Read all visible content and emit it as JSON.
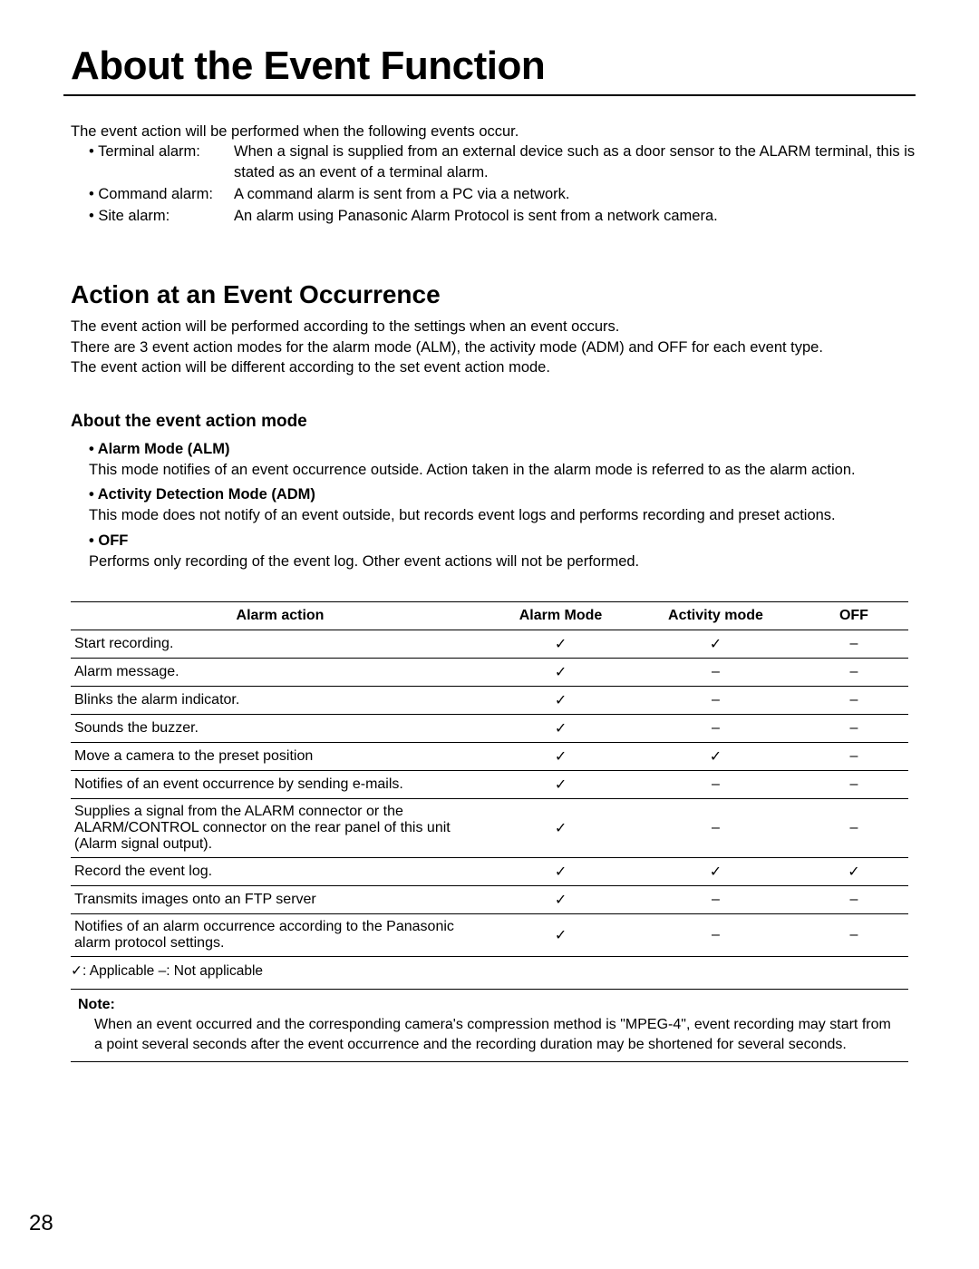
{
  "title": "About the Event Function",
  "intro": "The event action will be performed when the following events occur.",
  "alarm_types": [
    {
      "label": "• Terminal alarm:",
      "desc": "When a signal is supplied from an external device such as a door sensor to the ALARM terminal, this is stated as an event of a terminal alarm."
    },
    {
      "label": "• Command alarm:",
      "desc": "A command alarm is sent from a PC via a network."
    },
    {
      "label": "• Site alarm:",
      "desc": "An alarm using Panasonic Alarm Protocol is sent from a network camera."
    }
  ],
  "section": {
    "title": "Action at an Event Occurrence",
    "intro_lines": [
      "The event action will be performed according to the settings when an event occurs.",
      "There are 3 event action modes for the alarm mode (ALM), the activity mode (ADM) and OFF for each event type.",
      "The event action will be different according to the set event action mode."
    ]
  },
  "subsection": {
    "title": "About the event action mode",
    "modes": [
      {
        "name": "• Alarm Mode (ALM)",
        "desc": "This mode notifies of an event occurrence outside. Action taken in the alarm mode is referred to as the alarm action."
      },
      {
        "name": "• Activity Detection Mode (ADM)",
        "desc": "This mode does not notify of an event outside, but records event logs and performs recording and preset actions."
      },
      {
        "name": "• OFF",
        "desc": "Performs only recording of the event log. Other event actions will not be performed."
      }
    ]
  },
  "table": {
    "headers": [
      "Alarm action",
      "Alarm Mode",
      "Activity mode",
      "OFF"
    ],
    "rows": [
      {
        "action": "Start recording.",
        "alarm": "✓",
        "activity": "✓",
        "off": "–"
      },
      {
        "action": "Alarm message.",
        "alarm": "✓",
        "activity": "–",
        "off": "–"
      },
      {
        "action": "Blinks the alarm indicator.",
        "alarm": "✓",
        "activity": "–",
        "off": "–"
      },
      {
        "action": "Sounds the buzzer.",
        "alarm": "✓",
        "activity": "–",
        "off": "–"
      },
      {
        "action": "Move a camera to the preset position",
        "alarm": "✓",
        "activity": "✓",
        "off": "–"
      },
      {
        "action": "Notifies of an event occurrence by sending e-mails.",
        "alarm": "✓",
        "activity": "–",
        "off": "–"
      },
      {
        "action": "Supplies a signal from the ALARM connector or the ALARM/CONTROL connector on the rear panel of this unit (Alarm signal output).",
        "alarm": "✓",
        "activity": "–",
        "off": "–"
      },
      {
        "action": "Record the event log.",
        "alarm": "✓",
        "activity": "✓",
        "off": "✓"
      },
      {
        "action": "Transmits images onto an FTP server",
        "alarm": "✓",
        "activity": "–",
        "off": "–"
      },
      {
        "action": "Notifies of an alarm occurrence according to the Panasonic alarm protocol settings.",
        "alarm": "✓",
        "activity": "–",
        "off": "–"
      }
    ]
  },
  "legend": "✓: Applicable  –: Not applicable",
  "note": {
    "label": "Note:",
    "text": "When an event occurred and the corresponding camera's compression method is \"MPEG-4\", event recording may start from a point several seconds after the event occurrence and the recording duration may be shortened for several seconds."
  },
  "page_number": "28"
}
